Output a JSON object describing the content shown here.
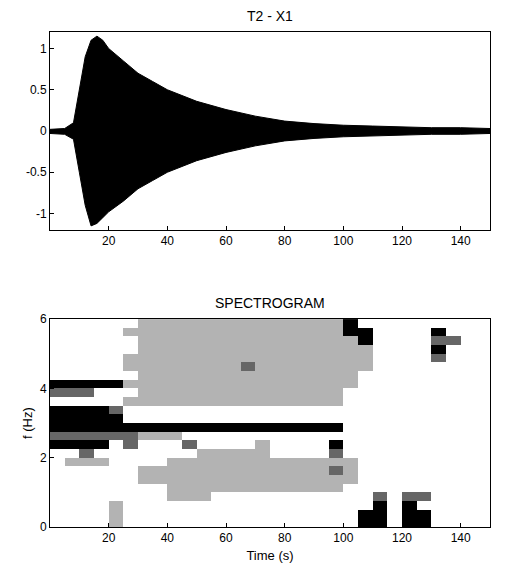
{
  "chart_data": [
    {
      "type": "band",
      "title": "T2 - X1",
      "color": "#000000",
      "x": [
        0,
        5,
        8,
        10,
        12,
        14,
        16,
        18,
        20,
        25,
        30,
        35,
        40,
        50,
        60,
        70,
        80,
        90,
        100,
        110,
        120,
        130,
        140,
        150
      ],
      "upper": [
        0.02,
        0.03,
        0.1,
        0.5,
        0.9,
        1.1,
        1.15,
        1.1,
        1.0,
        0.85,
        0.7,
        0.6,
        0.5,
        0.36,
        0.26,
        0.18,
        0.12,
        0.09,
        0.07,
        0.06,
        0.05,
        0.04,
        0.04,
        0.03
      ],
      "lower": [
        -0.03,
        -0.04,
        -0.1,
        -0.5,
        -0.9,
        -1.15,
        -1.12,
        -1.05,
        -0.98,
        -0.85,
        -0.7,
        -0.6,
        -0.5,
        -0.36,
        -0.26,
        -0.18,
        -0.12,
        -0.09,
        -0.07,
        -0.06,
        -0.05,
        -0.04,
        -0.04,
        -0.03
      ],
      "xlim": [
        0,
        150
      ],
      "xticks": [
        20,
        40,
        60,
        80,
        100,
        120,
        140
      ],
      "ylim": [
        -1.2,
        1.2
      ],
      "yticks": [
        -1,
        -0.5,
        0,
        0.5,
        1
      ]
    },
    {
      "type": "heatmap",
      "title": "SPECTROGRAM",
      "x_label": "Time (s)",
      "y_label": "f (Hz)",
      "color": "#000000",
      "x": [
        2.5,
        7.5,
        12.5,
        17.5,
        22.5,
        27.5,
        32.5,
        37.5,
        42.5,
        47.5,
        52.5,
        57.5,
        62.5,
        67.5,
        72.5,
        77.5,
        82.5,
        87.5,
        92.5,
        97.5,
        102.5,
        107.5,
        112.5,
        117.5,
        122.5,
        127.5,
        132.5,
        137.5,
        142.5,
        147.5
      ],
      "y": [
        0.125,
        0.375,
        0.625,
        0.875,
        1.125,
        1.375,
        1.625,
        1.875,
        2.125,
        2.375,
        2.625,
        2.875,
        3.125,
        3.375,
        3.625,
        3.875,
        4.125,
        4.375,
        4.625,
        4.875,
        5.125,
        5.375,
        5.625,
        5.875
      ],
      "z": [
        [
          0,
          0,
          0,
          0,
          0.3,
          0,
          0,
          0,
          0,
          0,
          0,
          0,
          0,
          0,
          0,
          0,
          0,
          0,
          0,
          0,
          0,
          1,
          1,
          0,
          1,
          1,
          0,
          0,
          0,
          0
        ],
        [
          0,
          0,
          0,
          0,
          0.3,
          0,
          0,
          0,
          0,
          0,
          0,
          0,
          0,
          0,
          0,
          0,
          0,
          0,
          0,
          0,
          0,
          1,
          1,
          0,
          1,
          1,
          0,
          0,
          0,
          0
        ],
        [
          0,
          0,
          0,
          0,
          0.3,
          0,
          0,
          0,
          0,
          0,
          0,
          0,
          0,
          0,
          0,
          0,
          0,
          0,
          0,
          0,
          0,
          0,
          1,
          0,
          1,
          0,
          0,
          0,
          0,
          0
        ],
        [
          0,
          0,
          0,
          0,
          0,
          0,
          0,
          0,
          0.3,
          0.3,
          0.3,
          0,
          0,
          0,
          0,
          0,
          0,
          0,
          0,
          0,
          0,
          0,
          0.6,
          0,
          0.6,
          0.6,
          0,
          0,
          0,
          0
        ],
        [
          0,
          0,
          0,
          0,
          0,
          0,
          0,
          0,
          0.3,
          0.3,
          0.3,
          0.3,
          0.3,
          0.3,
          0.3,
          0.3,
          0.3,
          0.3,
          0.3,
          0.3,
          0,
          0,
          0,
          0,
          0,
          0,
          0,
          0,
          0,
          0
        ],
        [
          0,
          0,
          0,
          0,
          0,
          0,
          0.3,
          0.3,
          0.3,
          0.3,
          0.3,
          0.3,
          0.3,
          0.3,
          0.3,
          0.3,
          0.3,
          0.3,
          0.3,
          0.3,
          0.3,
          0,
          0,
          0,
          0,
          0,
          0,
          0,
          0,
          0
        ],
        [
          0,
          0,
          0,
          0,
          0,
          0,
          0.3,
          0.3,
          0.3,
          0.3,
          0.3,
          0.3,
          0.3,
          0.3,
          0.3,
          0.3,
          0.3,
          0.3,
          0.3,
          0.6,
          0.3,
          0,
          0,
          0,
          0,
          0,
          0,
          0,
          0,
          0
        ],
        [
          0,
          0.3,
          0.3,
          0.3,
          0,
          0,
          0,
          0,
          0.3,
          0.3,
          0.3,
          0.3,
          0.3,
          0.3,
          0.3,
          0.3,
          0.3,
          0.3,
          0.3,
          0.3,
          0.3,
          0,
          0,
          0,
          0,
          0,
          0,
          0,
          0,
          0
        ],
        [
          0,
          0,
          0.6,
          0,
          0,
          0,
          0,
          0,
          0,
          0,
          0.3,
          0.3,
          0.3,
          0.3,
          0.3,
          0,
          0,
          0,
          0,
          0.6,
          0,
          0,
          0,
          0,
          0,
          0,
          0,
          0,
          0,
          0
        ],
        [
          1,
          1,
          1,
          1,
          0,
          0.6,
          0,
          0,
          0,
          0.6,
          0,
          0,
          0,
          0,
          0.3,
          0,
          0,
          0,
          0,
          1,
          0,
          0,
          0,
          0,
          0,
          0,
          0,
          0,
          0,
          0
        ],
        [
          0.6,
          0.6,
          0.6,
          0.6,
          0.6,
          0.6,
          0.3,
          0.3,
          0.3,
          0,
          0,
          0,
          0,
          0,
          0,
          0,
          0,
          0,
          0,
          0,
          0,
          0,
          0,
          0,
          0,
          0,
          0,
          0,
          0,
          0
        ],
        [
          1,
          1,
          1,
          1,
          1,
          1,
          1,
          1,
          1,
          1,
          1,
          1,
          1,
          1,
          1,
          1,
          1,
          1,
          1,
          1,
          0,
          0,
          0,
          0,
          0,
          0,
          0,
          0,
          0,
          0
        ],
        [
          1,
          1,
          1,
          1,
          1,
          0,
          0,
          0,
          0,
          0,
          0,
          0,
          0,
          0,
          0,
          0,
          0,
          0,
          0,
          0,
          0,
          0,
          0,
          0,
          0,
          0,
          0,
          0,
          0,
          0
        ],
        [
          1,
          1,
          1,
          1,
          0.6,
          0,
          0,
          0,
          0,
          0,
          0,
          0,
          0,
          0,
          0,
          0,
          0,
          0,
          0,
          0,
          0,
          0,
          0,
          0,
          0,
          0,
          0,
          0,
          0,
          0
        ],
        [
          0,
          0,
          0,
          0,
          0,
          0.3,
          0.3,
          0.3,
          0.3,
          0.3,
          0.3,
          0.3,
          0.3,
          0.3,
          0.3,
          0.3,
          0.3,
          0.3,
          0.3,
          0.3,
          0,
          0,
          0,
          0,
          0,
          0,
          0,
          0,
          0,
          0
        ],
        [
          0.6,
          0.6,
          0.6,
          0,
          0,
          0,
          0.3,
          0.3,
          0.3,
          0.3,
          0.3,
          0.3,
          0.3,
          0.3,
          0.3,
          0.3,
          0.3,
          0.3,
          0.3,
          0.3,
          0,
          0,
          0,
          0,
          0,
          0,
          0,
          0,
          0,
          0
        ],
        [
          1,
          1,
          1,
          1,
          1,
          0.3,
          0.3,
          0.3,
          0.3,
          0.3,
          0.3,
          0.3,
          0.3,
          0.3,
          0.3,
          0.3,
          0.3,
          0.3,
          0.3,
          0.3,
          0.3,
          0,
          0,
          0,
          0,
          0,
          0,
          0,
          0,
          0
        ],
        [
          0,
          0,
          0,
          0,
          0,
          0,
          0.3,
          0.3,
          0.3,
          0.3,
          0.3,
          0.3,
          0.3,
          0.3,
          0.3,
          0.3,
          0.3,
          0.3,
          0.3,
          0.3,
          0.3,
          0,
          0,
          0,
          0,
          0,
          0,
          0,
          0,
          0
        ],
        [
          0,
          0,
          0,
          0,
          0,
          0.3,
          0.3,
          0.3,
          0.3,
          0.3,
          0.3,
          0.3,
          0.3,
          0.6,
          0.3,
          0.3,
          0.3,
          0.3,
          0.3,
          0.3,
          0.3,
          0.3,
          0,
          0,
          0,
          0,
          0,
          0,
          0,
          0
        ],
        [
          0,
          0,
          0,
          0,
          0,
          0.3,
          0.3,
          0.3,
          0.3,
          0.3,
          0.3,
          0.3,
          0.3,
          0.3,
          0.3,
          0.3,
          0.3,
          0.3,
          0.3,
          0.3,
          0.3,
          0.3,
          0,
          0,
          0,
          0,
          0.6,
          0,
          0,
          0
        ],
        [
          0,
          0,
          0,
          0,
          0,
          0,
          0.3,
          0.3,
          0.3,
          0.3,
          0.3,
          0.3,
          0.3,
          0.3,
          0.3,
          0.3,
          0.3,
          0.3,
          0.3,
          0.3,
          0.3,
          0.3,
          0,
          0,
          0,
          0,
          1,
          0,
          0,
          0
        ],
        [
          0,
          0,
          0,
          0,
          0,
          0,
          0.3,
          0.3,
          0.3,
          0.3,
          0.3,
          0.3,
          0.3,
          0.3,
          0.3,
          0.3,
          0.3,
          0.3,
          0.3,
          0.3,
          0.3,
          1,
          0,
          0,
          0,
          0,
          0.6,
          0.6,
          0,
          0
        ],
        [
          0,
          0,
          0,
          0,
          0,
          0.3,
          0.3,
          0.3,
          0.3,
          0.3,
          0.3,
          0.3,
          0.3,
          0.3,
          0.3,
          0.3,
          0.3,
          0.3,
          0.3,
          0.3,
          1,
          1,
          0,
          0,
          0,
          0,
          1,
          0,
          0,
          0
        ],
        [
          0,
          0,
          0,
          0,
          0,
          0,
          0.3,
          0.3,
          0.3,
          0.3,
          0.3,
          0.3,
          0.3,
          0.3,
          0.3,
          0.3,
          0.3,
          0.3,
          0.3,
          0.3,
          1,
          0,
          0,
          0,
          0,
          0,
          0,
          0,
          0,
          0
        ]
      ],
      "zlim": [
        0,
        1
      ],
      "xlim": [
        0,
        150
      ],
      "xticks": [
        20,
        40,
        60,
        80,
        100,
        120,
        140
      ],
      "ylim": [
        0,
        6
      ],
      "yticks": [
        0,
        2,
        4,
        6
      ]
    }
  ]
}
